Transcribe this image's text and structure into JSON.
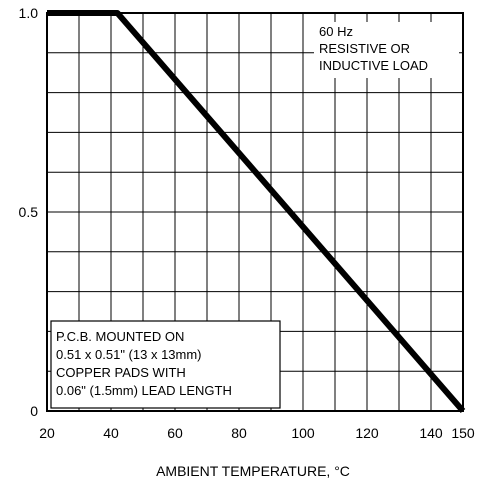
{
  "chart_data": {
    "type": "line",
    "xlabel": "AMBIENT TEMPERATURE, °C",
    "ylabel": "",
    "xlim": [
      20,
      150
    ],
    "ylim": [
      0,
      1.0
    ],
    "x_ticks": [
      20,
      40,
      60,
      80,
      100,
      120,
      140,
      150
    ],
    "x_tick_labels": [
      "20",
      "40",
      "60",
      "80",
      "100",
      "120",
      "140",
      "150"
    ],
    "y_ticks": [
      0,
      0.5,
      1.0
    ],
    "y_tick_labels": [
      "0",
      "0.5",
      "1.0"
    ],
    "x_gridlines": [
      20,
      30,
      40,
      50,
      60,
      70,
      80,
      90,
      100,
      110,
      120,
      130,
      140,
      150
    ],
    "y_gridlines": [
      0,
      0.1,
      0.2,
      0.3,
      0.4,
      0.5,
      0.6,
      0.7,
      0.8,
      0.9,
      1.0
    ],
    "grid": true,
    "series": [
      {
        "x": [
          20,
          42,
          150
        ],
        "y": [
          1.0,
          1.0,
          0
        ]
      }
    ],
    "annotations": {
      "top_right": [
        "60 Hz",
        "RESISTIVE OR",
        "INDUCTIVE LOAD"
      ],
      "bottom_left": [
        "P.C.B. MOUNTED ON",
        "0.51 x 0.51\" (13 x 13mm)",
        "COPPER PADS WITH",
        "0.06\" (1.5mm) LEAD LENGTH"
      ]
    }
  }
}
